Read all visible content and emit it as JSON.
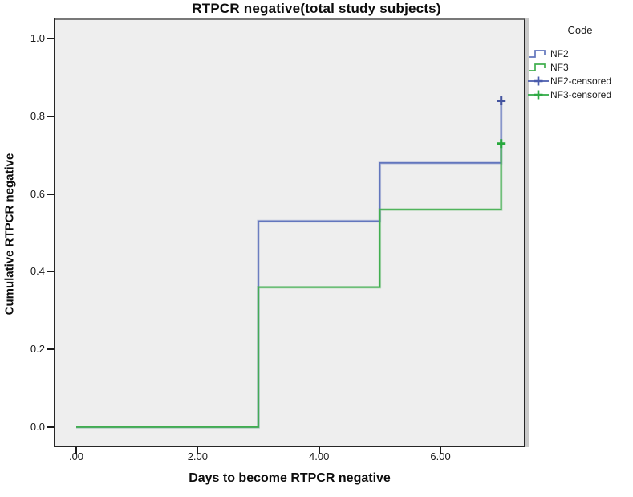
{
  "title": "RTPCR negative(total study subjects)",
  "axes": {
    "x_label": "Days to become RTPCR negative",
    "y_label": "Cumulative RTPCR negative",
    "x_ticks": [
      {
        "value": 0,
        "label": ".00"
      },
      {
        "value": 2,
        "label": "2.00"
      },
      {
        "value": 4,
        "label": "4.00"
      },
      {
        "value": 6,
        "label": "6.00"
      }
    ],
    "y_ticks": [
      {
        "value": 0.0,
        "label": "0.0"
      },
      {
        "value": 0.2,
        "label": "0.2"
      },
      {
        "value": 0.4,
        "label": "0.4"
      },
      {
        "value": 0.6,
        "label": "0.6"
      },
      {
        "value": 0.8,
        "label": "0.8"
      },
      {
        "value": 1.0,
        "label": "1.0"
      }
    ]
  },
  "legend": {
    "title": "Code",
    "items": [
      {
        "label": "NF2",
        "symbol": "step",
        "color": "#6276bd"
      },
      {
        "label": "NF3",
        "symbol": "step",
        "color": "#41ae4f"
      },
      {
        "label": "NF2-censored",
        "symbol": "censored",
        "color": "#4a5cad"
      },
      {
        "label": "NF3-censored",
        "symbol": "censored",
        "color": "#2fa944"
      }
    ]
  },
  "chart_data": {
    "type": "line",
    "subtype": "kaplan-meier-step",
    "title": "RTPCR negative(total study subjects)",
    "xlabel": "Days to become RTPCR negative",
    "ylabel": "Cumulative RTPCR negative",
    "xlim": [
      -0.37,
      7.4
    ],
    "ylim": [
      -0.052,
      1.054
    ],
    "grid": false,
    "plot_background": "#eeeeee",
    "legend_position": "right-top",
    "series": [
      {
        "name": "NF2",
        "color": "#6276bd",
        "censored_color": "#44549f",
        "points": [
          [
            0,
            0.0
          ],
          [
            3,
            0.0
          ],
          [
            3,
            0.53
          ],
          [
            5,
            0.53
          ],
          [
            5,
            0.68
          ],
          [
            7,
            0.68
          ],
          [
            7,
            0.84
          ]
        ],
        "censored": [
          [
            7,
            0.84
          ]
        ]
      },
      {
        "name": "NF3",
        "color": "#41ae4f",
        "censored_color": "#27a83c",
        "points": [
          [
            0,
            0.0
          ],
          [
            3,
            0.0
          ],
          [
            3,
            0.36
          ],
          [
            5,
            0.36
          ],
          [
            5,
            0.56
          ],
          [
            7,
            0.56
          ],
          [
            7,
            0.73
          ]
        ],
        "censored": [
          [
            7,
            0.73
          ]
        ]
      }
    ]
  }
}
